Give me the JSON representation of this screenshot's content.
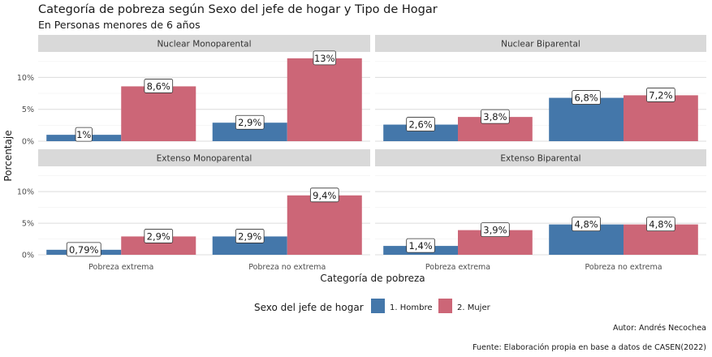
{
  "chart_data": {
    "type": "bar",
    "title": "Categoría de pobreza según Sexo del jefe de hogar y Tipo de Hogar",
    "subtitle": "En Personas menores de 6 años",
    "xlabel": "Categoría de pobreza",
    "ylabel": "Porcentaje",
    "ylim": [
      0,
      14
    ],
    "yticks": [
      0,
      5,
      10
    ],
    "ytick_labels": [
      "0%",
      "5%",
      "10%"
    ],
    "grid": true,
    "categories": [
      "Pobreza extrema",
      "Pobreza no extrema"
    ],
    "legend": {
      "title": "Sexo del jefe de hogar",
      "position": "bottom",
      "items": [
        "1. Hombre",
        "2. Mujer"
      ]
    },
    "colors": [
      "#4477aa",
      "#cc6677"
    ],
    "panels": [
      {
        "name": "Nuclear Monoparental",
        "series": [
          {
            "name": "1. Hombre",
            "values": [
              1.0,
              2.9
            ],
            "labels": [
              "1%",
              "2,9%"
            ]
          },
          {
            "name": "2. Mujer",
            "values": [
              8.6,
              13.0
            ],
            "labels": [
              "8,6%",
              "13%"
            ]
          }
        ]
      },
      {
        "name": "Nuclear Biparental",
        "series": [
          {
            "name": "1. Hombre",
            "values": [
              2.6,
              6.8
            ],
            "labels": [
              "2,6%",
              "6,8%"
            ]
          },
          {
            "name": "2. Mujer",
            "values": [
              3.8,
              7.2
            ],
            "labels": [
              "3,8%",
              "7,2%"
            ]
          }
        ]
      },
      {
        "name": "Extenso Monoparental",
        "series": [
          {
            "name": "1. Hombre",
            "values": [
              0.79,
              2.9
            ],
            "labels": [
              "0,79%",
              "2,9%"
            ]
          },
          {
            "name": "2. Mujer",
            "values": [
              2.9,
              9.4
            ],
            "labels": [
              "2,9%",
              "9,4%"
            ]
          }
        ]
      },
      {
        "name": "Extenso Biparental",
        "series": [
          {
            "name": "1. Hombre",
            "values": [
              1.4,
              4.8
            ],
            "labels": [
              "1,4%",
              "4,8%"
            ]
          },
          {
            "name": "2. Mujer",
            "values": [
              3.9,
              4.8
            ],
            "labels": [
              "3,9%",
              "4,8%"
            ]
          }
        ]
      }
    ],
    "captions": [
      "Autor: Andrés Necochea",
      "Fuente: Elaboración propia en base a datos de CASEN(2022)"
    ]
  }
}
